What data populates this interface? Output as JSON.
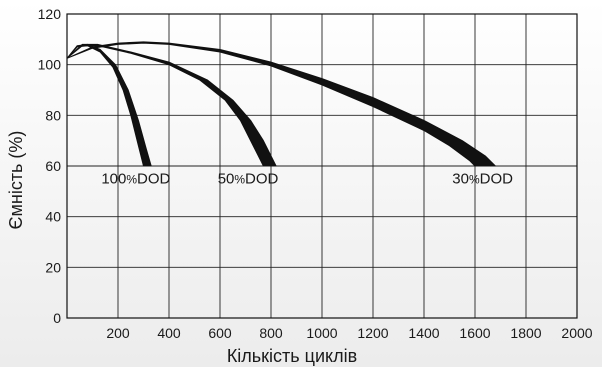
{
  "chart_data": {
    "type": "line",
    "title": "",
    "xlabel": "Кількість циклів",
    "ylabel": "Ємність (%)",
    "xlim": [
      0,
      2000
    ],
    "ylim": [
      0,
      120
    ],
    "xticks": [
      200,
      400,
      600,
      800,
      1000,
      1200,
      1400,
      1600,
      1800,
      2000
    ],
    "yticks": [
      0,
      20,
      40,
      60,
      80,
      100,
      120
    ],
    "grid": true,
    "legend": "none",
    "line_color": "#111111",
    "series": [
      {
        "name": "100%DOD",
        "label_parts": [
          "100",
          "%",
          "DOD"
        ],
        "label_at": [
          270,
          53
        ],
        "upper": [
          [
            0,
            102.5
          ],
          [
            40,
            107.5
          ],
          [
            80,
            108
          ],
          [
            130,
            106
          ],
          [
            190,
            100
          ],
          [
            240,
            90
          ],
          [
            280,
            78
          ],
          [
            310,
            67
          ],
          [
            330,
            60
          ]
        ],
        "lower": [
          [
            0,
            102.5
          ],
          [
            40,
            107
          ],
          [
            80,
            107.5
          ],
          [
            130,
            105
          ],
          [
            180,
            99
          ],
          [
            220,
            90
          ],
          [
            250,
            80
          ],
          [
            280,
            68
          ],
          [
            300,
            60
          ]
        ]
      },
      {
        "name": "50%DOD",
        "label_parts": [
          "50",
          "%",
          "DOD"
        ],
        "label_at": [
          710,
          53
        ],
        "upper": [
          [
            0,
            102.5
          ],
          [
            60,
            108
          ],
          [
            120,
            108
          ],
          [
            250,
            105
          ],
          [
            400,
            101
          ],
          [
            550,
            94
          ],
          [
            650,
            86
          ],
          [
            720,
            78
          ],
          [
            770,
            70
          ],
          [
            800,
            64
          ],
          [
            820,
            60
          ]
        ],
        "lower": [
          [
            0,
            102.5
          ],
          [
            60,
            107.5
          ],
          [
            120,
            107.5
          ],
          [
            250,
            104.5
          ],
          [
            400,
            100
          ],
          [
            520,
            94
          ],
          [
            620,
            86
          ],
          [
            680,
            78
          ],
          [
            720,
            70
          ],
          [
            750,
            64
          ],
          [
            770,
            60
          ]
        ]
      },
      {
        "name": "30%DOD",
        "label_parts": [
          "30",
          "%",
          "DOD"
        ],
        "label_at": [
          1630,
          53
        ],
        "upper": [
          [
            0,
            102.5
          ],
          [
            100,
            107
          ],
          [
            200,
            108.5
          ],
          [
            300,
            109
          ],
          [
            400,
            108.5
          ],
          [
            600,
            106
          ],
          [
            800,
            101
          ],
          [
            1000,
            94.5
          ],
          [
            1200,
            87
          ],
          [
            1400,
            78
          ],
          [
            1550,
            70
          ],
          [
            1640,
            64
          ],
          [
            1680,
            60
          ]
        ],
        "lower": [
          [
            0,
            102.5
          ],
          [
            100,
            106.5
          ],
          [
            200,
            108
          ],
          [
            300,
            108.5
          ],
          [
            400,
            108
          ],
          [
            600,
            105
          ],
          [
            800,
            99.5
          ],
          [
            1000,
            92
          ],
          [
            1200,
            83.5
          ],
          [
            1400,
            74
          ],
          [
            1500,
            68
          ],
          [
            1580,
            62
          ],
          [
            1600,
            60
          ]
        ]
      }
    ]
  }
}
